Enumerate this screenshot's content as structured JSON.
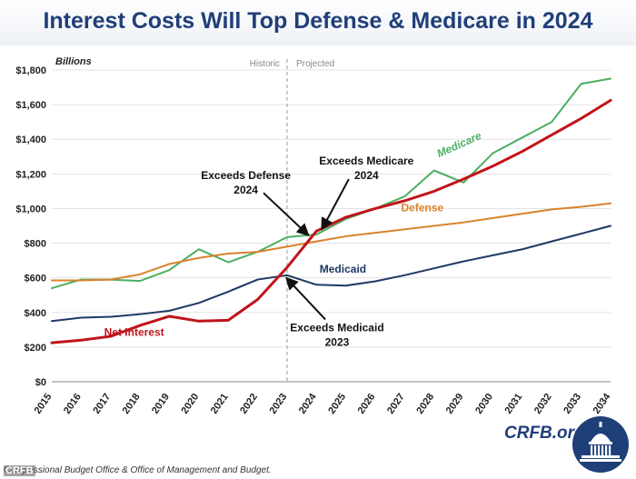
{
  "title": "Interest Costs Will Top Defense & Medicare in 2024",
  "source": "Congressional Budget Office & Office of Management and Budget.",
  "watermark": "CRFB",
  "brand": "CRFB.org",
  "colors": {
    "title": "#1f3f79",
    "net_interest": "#c0141b",
    "medicare": "#4caf62",
    "defense": "#d9822b",
    "medicaid": "#1f3864",
    "divider": "#9a9a9a"
  },
  "chart_data": {
    "type": "line",
    "ylabel": "Billions",
    "ylim": [
      0,
      1800
    ],
    "yticks": [
      0,
      200,
      400,
      600,
      800,
      1000,
      1200,
      1400,
      1600,
      1800
    ],
    "ytick_labels": [
      "$0",
      "$200",
      "$400",
      "$600",
      "$800",
      "$1,000",
      "$1,200",
      "$1,400",
      "$1,600",
      "$1,800"
    ],
    "x": [
      2015,
      2016,
      2017,
      2018,
      2019,
      2020,
      2021,
      2022,
      2023,
      2024,
      2025,
      2026,
      2027,
      2028,
      2029,
      2030,
      2031,
      2032,
      2033,
      2034
    ],
    "x_labels": [
      "2015",
      "2016",
      "2017",
      "2018",
      "2019",
      "2020",
      "2021",
      "2022",
      "2023",
      "2024",
      "2025",
      "2026",
      "2027",
      "2028",
      "2029",
      "2030",
      "2031",
      "2032",
      "2033",
      "2034"
    ],
    "grid": true,
    "divider": {
      "x": 2023,
      "left_label": "Historic",
      "right_label": "Projected"
    },
    "series": [
      {
        "key": "medicare",
        "name": "Medicare",
        "color": "#4caf62",
        "width": 2,
        "values": [
          540,
          590,
          590,
          582,
          645,
          765,
          690,
          750,
          835,
          850,
          940,
          1000,
          1070,
          1220,
          1150,
          1320,
          1410,
          1500,
          1720,
          1750
        ]
      },
      {
        "key": "defense",
        "name": "Defense",
        "color": "#d9822b",
        "width": 2,
        "values": [
          585,
          585,
          590,
          620,
          680,
          715,
          740,
          750,
          780,
          810,
          840,
          860,
          880,
          900,
          920,
          945,
          970,
          995,
          1010,
          1030
        ]
      },
      {
        "key": "medicaid",
        "name": "Medicaid",
        "color": "#1f3864",
        "width": 2,
        "values": [
          350,
          370,
          375,
          390,
          410,
          455,
          520,
          590,
          615,
          560,
          555,
          580,
          615,
          655,
          695,
          730,
          765,
          810,
          855,
          900
        ]
      },
      {
        "key": "net_interest",
        "name": "Net Interest",
        "color": "#c0141b",
        "width": 3,
        "values": [
          225,
          240,
          262,
          325,
          378,
          350,
          355,
          475,
          660,
          870,
          950,
          1000,
          1045,
          1100,
          1170,
          1245,
          1330,
          1425,
          1520,
          1625
        ]
      }
    ],
    "series_labels": [
      {
        "key": "medicare",
        "text": "Medicare",
        "x": 2028.9,
        "y": 1350,
        "rotate": -24
      },
      {
        "key": "defense",
        "text": "Defense",
        "x": 2027.6,
        "y": 985,
        "rotate": 0
      },
      {
        "key": "medicaid",
        "text": "Medicaid",
        "x": 2024.9,
        "y": 630,
        "rotate": 0
      },
      {
        "key": "net_interest",
        "text": "Net Interest",
        "x": 2017.8,
        "y": 265,
        "rotate": 0
      }
    ],
    "annotations": [
      {
        "lines": [
          "Exceeds Defense",
          "2024"
        ],
        "tx": 2021.6,
        "ty": 1170,
        "ax0": 2022.2,
        "ay0": 1090,
        "ax1": 2023.7,
        "ay1": 850
      },
      {
        "lines": [
          "Exceeds Medicare",
          "2024"
        ],
        "tx": 2025.7,
        "ty": 1255,
        "ax0": 2025.1,
        "ay0": 1170,
        "ax1": 2024.2,
        "ay1": 885
      },
      {
        "lines": [
          "Exceeds Medicaid",
          "2023"
        ],
        "tx": 2024.7,
        "ty": 290,
        "ax0": 2024.3,
        "ay0": 360,
        "ax1": 2023.0,
        "ay1": 595
      }
    ]
  }
}
